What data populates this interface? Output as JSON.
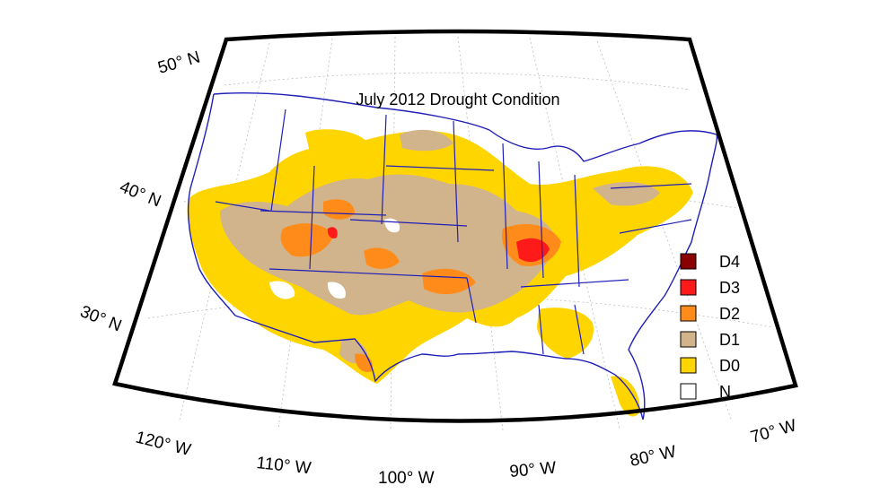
{
  "title": "July 2012 Drought Condition",
  "lat_labels": [
    "50",
    "40",
    "30"
  ],
  "lon_labels": [
    "120",
    "110",
    "100",
    "90",
    "80",
    "70"
  ],
  "lat_suffix": "N",
  "lon_suffix": "W",
  "degree_symbol": "°",
  "legend": [
    {
      "label": "D4",
      "color": "#8b0000"
    },
    {
      "label": "D3",
      "color": "#ff1a1a"
    },
    {
      "label": "D2",
      "color": "#ff8c1a"
    },
    {
      "label": "D1",
      "color": "#d2b48c"
    },
    {
      "label": "D0",
      "color": "#ffd500"
    },
    {
      "label": "N",
      "color": "#ffffff"
    }
  ],
  "colors": {
    "border": "#000000",
    "state_lines": "#1f1fb8",
    "graticule": "#bdbdbd"
  }
}
